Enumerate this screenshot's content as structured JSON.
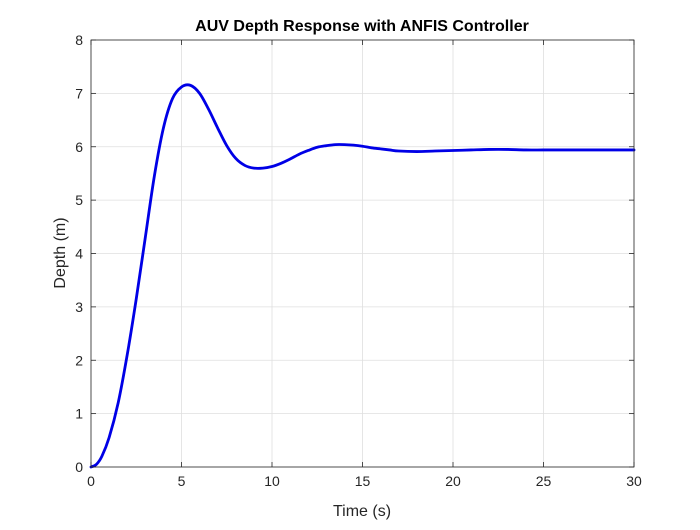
{
  "chart_data": {
    "type": "line",
    "title": "AUV Depth Response with ANFIS Controller",
    "xlabel": "Time (s)",
    "ylabel": "Depth (m)",
    "xlim": [
      0,
      30
    ],
    "ylim": [
      0,
      8
    ],
    "xticks": [
      0,
      5,
      10,
      15,
      20,
      25,
      30
    ],
    "yticks": [
      0,
      1,
      2,
      3,
      4,
      5,
      6,
      7,
      8
    ],
    "grid": true,
    "box": true,
    "series": [
      {
        "color": "#0000e6",
        "x": [
          0,
          0.3,
          0.6,
          1.0,
          1.5,
          2.0,
          2.5,
          3.0,
          3.5,
          4.0,
          4.5,
          5.0,
          5.5,
          6.0,
          6.5,
          7.0,
          7.5,
          8.0,
          8.5,
          9.0,
          9.5,
          10.0,
          10.5,
          11.0,
          11.5,
          12.0,
          12.5,
          13.0,
          13.5,
          14.0,
          14.5,
          15.0,
          15.5,
          16.0,
          16.5,
          17.0,
          18.0,
          19.0,
          20.0,
          21.0,
          22.0,
          23.0,
          24.0,
          25.0,
          26.0,
          27.0,
          28.0,
          29.0,
          30.0
        ],
        "values": [
          0,
          0.05,
          0.2,
          0.55,
          1.2,
          2.1,
          3.15,
          4.3,
          5.45,
          6.35,
          6.9,
          7.12,
          7.15,
          7.0,
          6.7,
          6.35,
          6.02,
          5.78,
          5.65,
          5.6,
          5.6,
          5.63,
          5.69,
          5.77,
          5.86,
          5.93,
          5.99,
          6.02,
          6.04,
          6.04,
          6.03,
          6.01,
          5.98,
          5.96,
          5.94,
          5.92,
          5.91,
          5.92,
          5.93,
          5.94,
          5.95,
          5.95,
          5.94,
          5.94,
          5.94,
          5.94,
          5.94,
          5.94,
          5.94
        ]
      }
    ]
  }
}
